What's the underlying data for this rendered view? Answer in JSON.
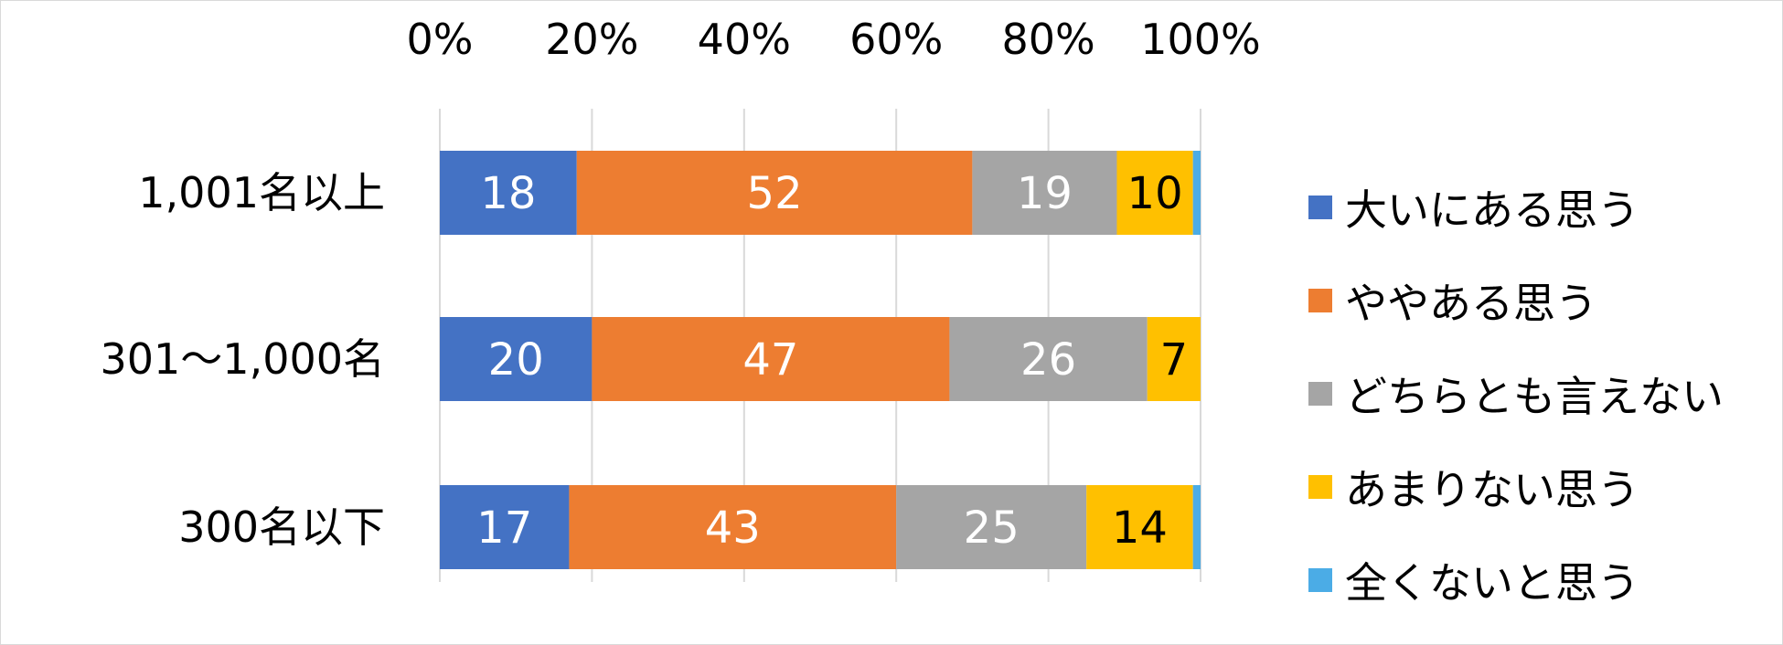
{
  "chart_data": {
    "type": "bar",
    "orientation": "horizontal",
    "stacked": true,
    "categories": [
      "1,001名以上",
      "301～1,000名",
      "300名以下"
    ],
    "series": [
      {
        "name": "大いにある思う",
        "color": "#4472C4",
        "label_color": "#FFFFFF",
        "values": [
          18,
          20,
          17
        ]
      },
      {
        "name": "ややある思う",
        "color": "#ED7D31",
        "label_color": "#FFFFFF",
        "values": [
          52,
          47,
          43
        ]
      },
      {
        "name": "どちらとも言えない",
        "color": "#A5A5A5",
        "label_color": "#FFFFFF",
        "values": [
          19,
          26,
          25
        ]
      },
      {
        "name": "あまりない思う",
        "color": "#FFC000",
        "label_color": "#000000",
        "values": [
          10,
          7,
          14
        ]
      },
      {
        "name": "全くないと思う",
        "color": "#4BACE6",
        "label_color": "#000000",
        "values": [
          1,
          0,
          1
        ]
      }
    ],
    "data_labels": [
      [
        "18",
        "52",
        "19",
        "10",
        ""
      ],
      [
        "20",
        "47",
        "26",
        "7",
        ""
      ],
      [
        "17",
        "43",
        "25",
        "14",
        ""
      ]
    ],
    "x_ticks": [
      "0%",
      "20%",
      "40%",
      "60%",
      "80%",
      "100%"
    ],
    "xlim": [
      0,
      100
    ],
    "x_axis_position": "top",
    "grid": true,
    "legend_position": "right"
  }
}
